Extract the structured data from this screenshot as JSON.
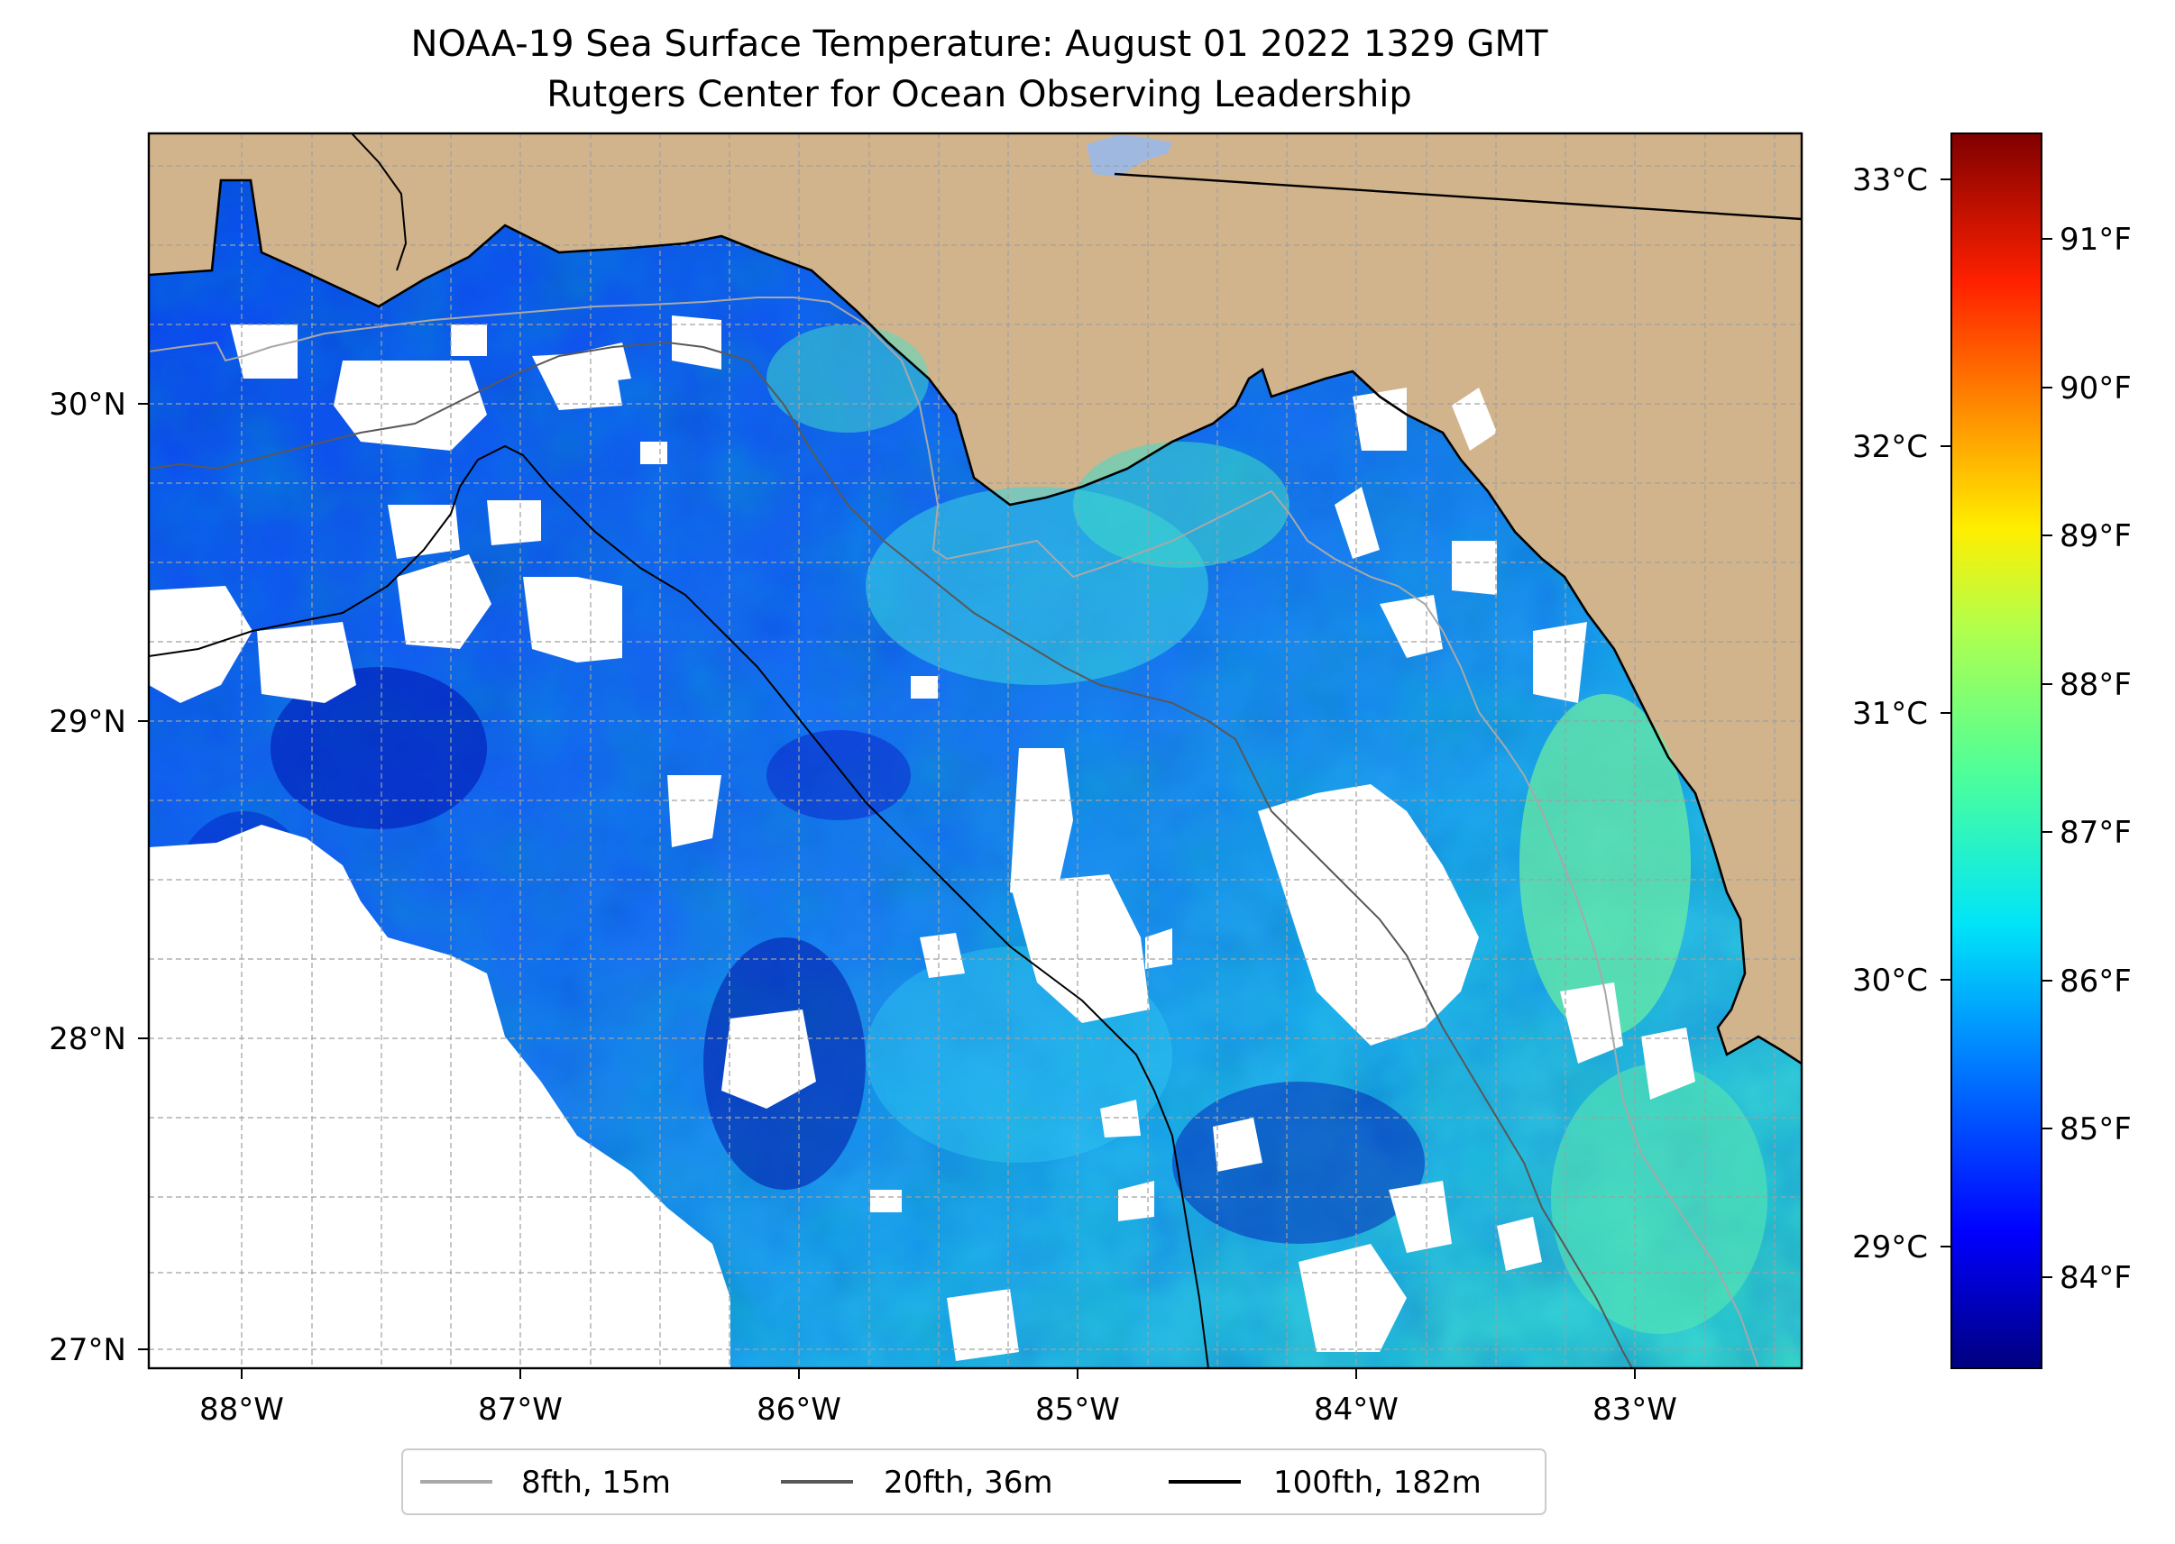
{
  "title": {
    "line1": "NOAA-19 Sea Surface Temperature: August 01 2022 1329 GMT",
    "line2": "Rutgers Center for Ocean Observing Leadership"
  },
  "map": {
    "lon_ticks": [
      "88°W",
      "87°W",
      "86°W",
      "85°W",
      "84°W",
      "83°W"
    ],
    "lat_ticks": [
      "30°N",
      "29°N",
      "28°N",
      "27°N"
    ],
    "colors": {
      "land": "#d2b48c",
      "no_data": "#ffffff",
      "lake": "#9fb8e0",
      "grid": "#a0a0a0"
    },
    "layers": [
      "land",
      "sea-surface-temperature",
      "cloud-no-data",
      "coastline",
      "state-border",
      "isobaths"
    ]
  },
  "colorbar": {
    "celsius_ticks": [
      "33°C",
      "32°C",
      "31°C",
      "30°C",
      "29°C"
    ],
    "fahrenheit_ticks": [
      "91°F",
      "90°F",
      "89°F",
      "88°F",
      "87°F",
      "86°F",
      "85°F",
      "84°F"
    ],
    "colormap": [
      "#00007f",
      "#0000ff",
      "#007fff",
      "#00e5f8",
      "#4cff9b",
      "#b2ff4c",
      "#ffee00",
      "#ff8800",
      "#ff2000",
      "#7f0000"
    ]
  },
  "legend": {
    "items": [
      {
        "label": "8fth, 15m",
        "color": "#a8a8a8"
      },
      {
        "label": "20fth, 36m",
        "color": "#585858"
      },
      {
        "label": "100fth, 182m",
        "color": "#000000"
      }
    ]
  }
}
